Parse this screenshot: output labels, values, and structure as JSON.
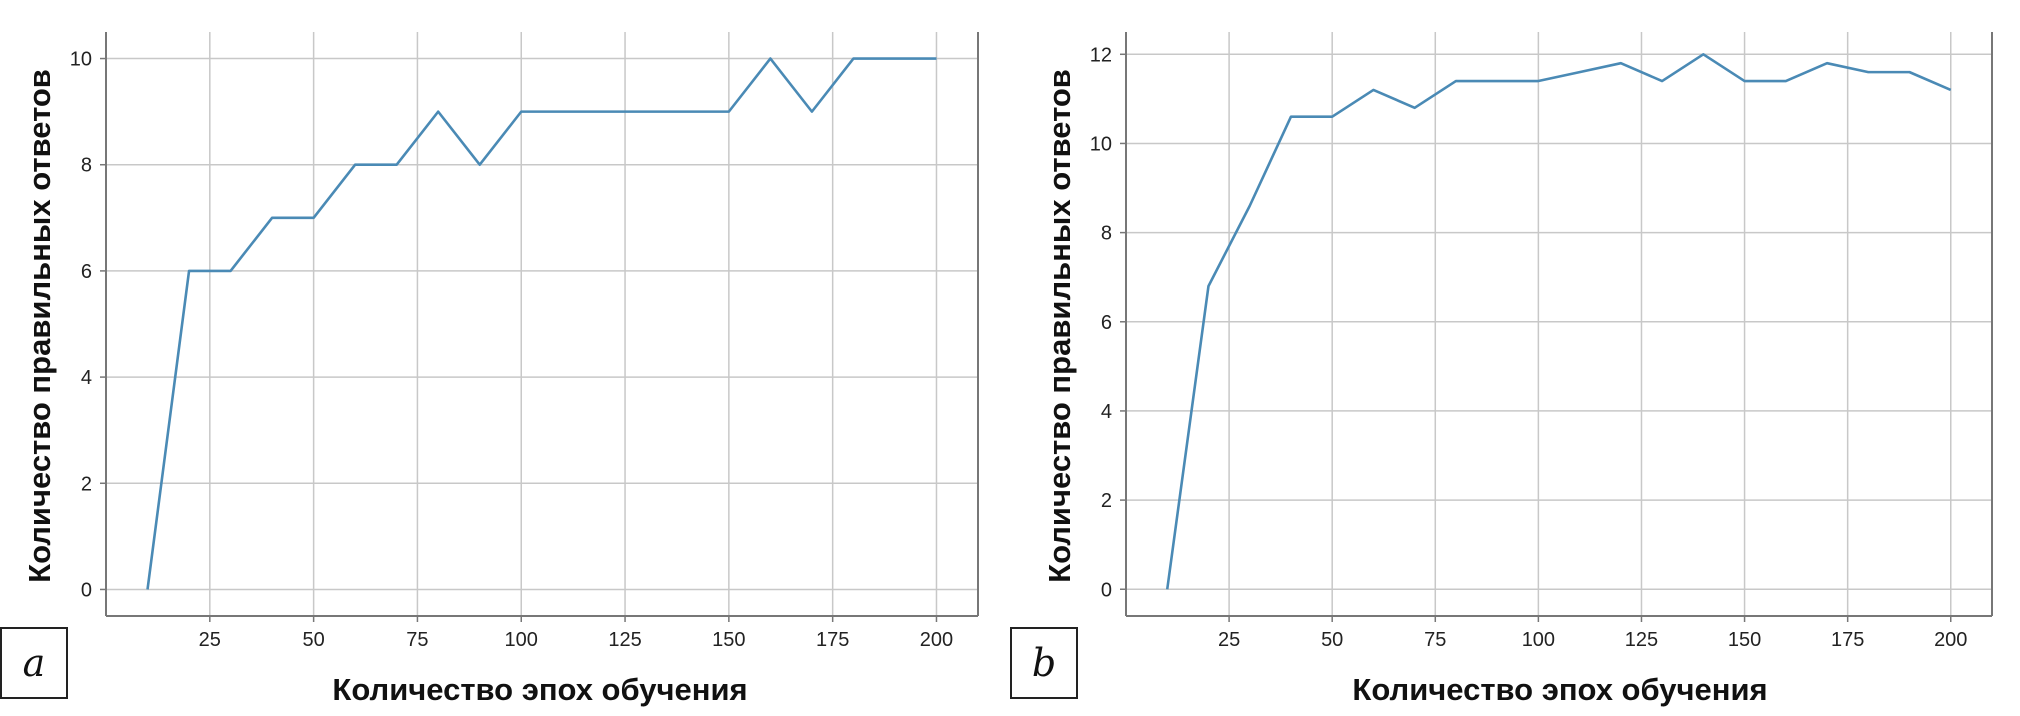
{
  "chart_data": [
    {
      "type": "line",
      "panel_label": "a",
      "xlabel": "Количество эпох обучения",
      "ylabel": "Количество правильных ответов",
      "xlim": [
        0,
        210
      ],
      "ylim": [
        -0.5,
        10.5
      ],
      "xticks": [
        25,
        50,
        75,
        100,
        125,
        150,
        175,
        200
      ],
      "yticks": [
        0,
        2,
        4,
        6,
        8,
        10
      ],
      "grid": true,
      "line_color": "#4a8ab5",
      "series": [
        {
          "x": [
            10,
            20,
            30,
            40,
            50,
            60,
            70,
            80,
            90,
            100,
            110,
            120,
            130,
            140,
            150,
            160,
            170,
            180,
            190,
            200
          ],
          "y": [
            0,
            6,
            6,
            7,
            7,
            8,
            8,
            9,
            8,
            9,
            9,
            9,
            9,
            9,
            9,
            10,
            9,
            10,
            10,
            10
          ]
        }
      ]
    },
    {
      "type": "line",
      "panel_label": "b",
      "xlabel": "Количество эпох обучения",
      "ylabel": "Количество правильных ответов",
      "xlim": [
        0,
        210
      ],
      "ylim": [
        -0.6,
        12.5
      ],
      "xticks": [
        25,
        50,
        75,
        100,
        125,
        150,
        175,
        200
      ],
      "yticks": [
        0,
        2,
        4,
        6,
        8,
        10,
        12
      ],
      "grid": true,
      "line_color": "#4a8ab5",
      "series": [
        {
          "x": [
            10,
            20,
            30,
            40,
            50,
            60,
            70,
            80,
            90,
            100,
            110,
            120,
            130,
            140,
            150,
            160,
            170,
            180,
            190,
            200
          ],
          "y": [
            0,
            6.8,
            8.6,
            10.6,
            10.6,
            11.2,
            10.8,
            11.4,
            11.4,
            11.4,
            11.6,
            11.8,
            11.4,
            12.0,
            11.4,
            11.4,
            11.8,
            11.6,
            11.6,
            11.2
          ]
        }
      ]
    }
  ]
}
